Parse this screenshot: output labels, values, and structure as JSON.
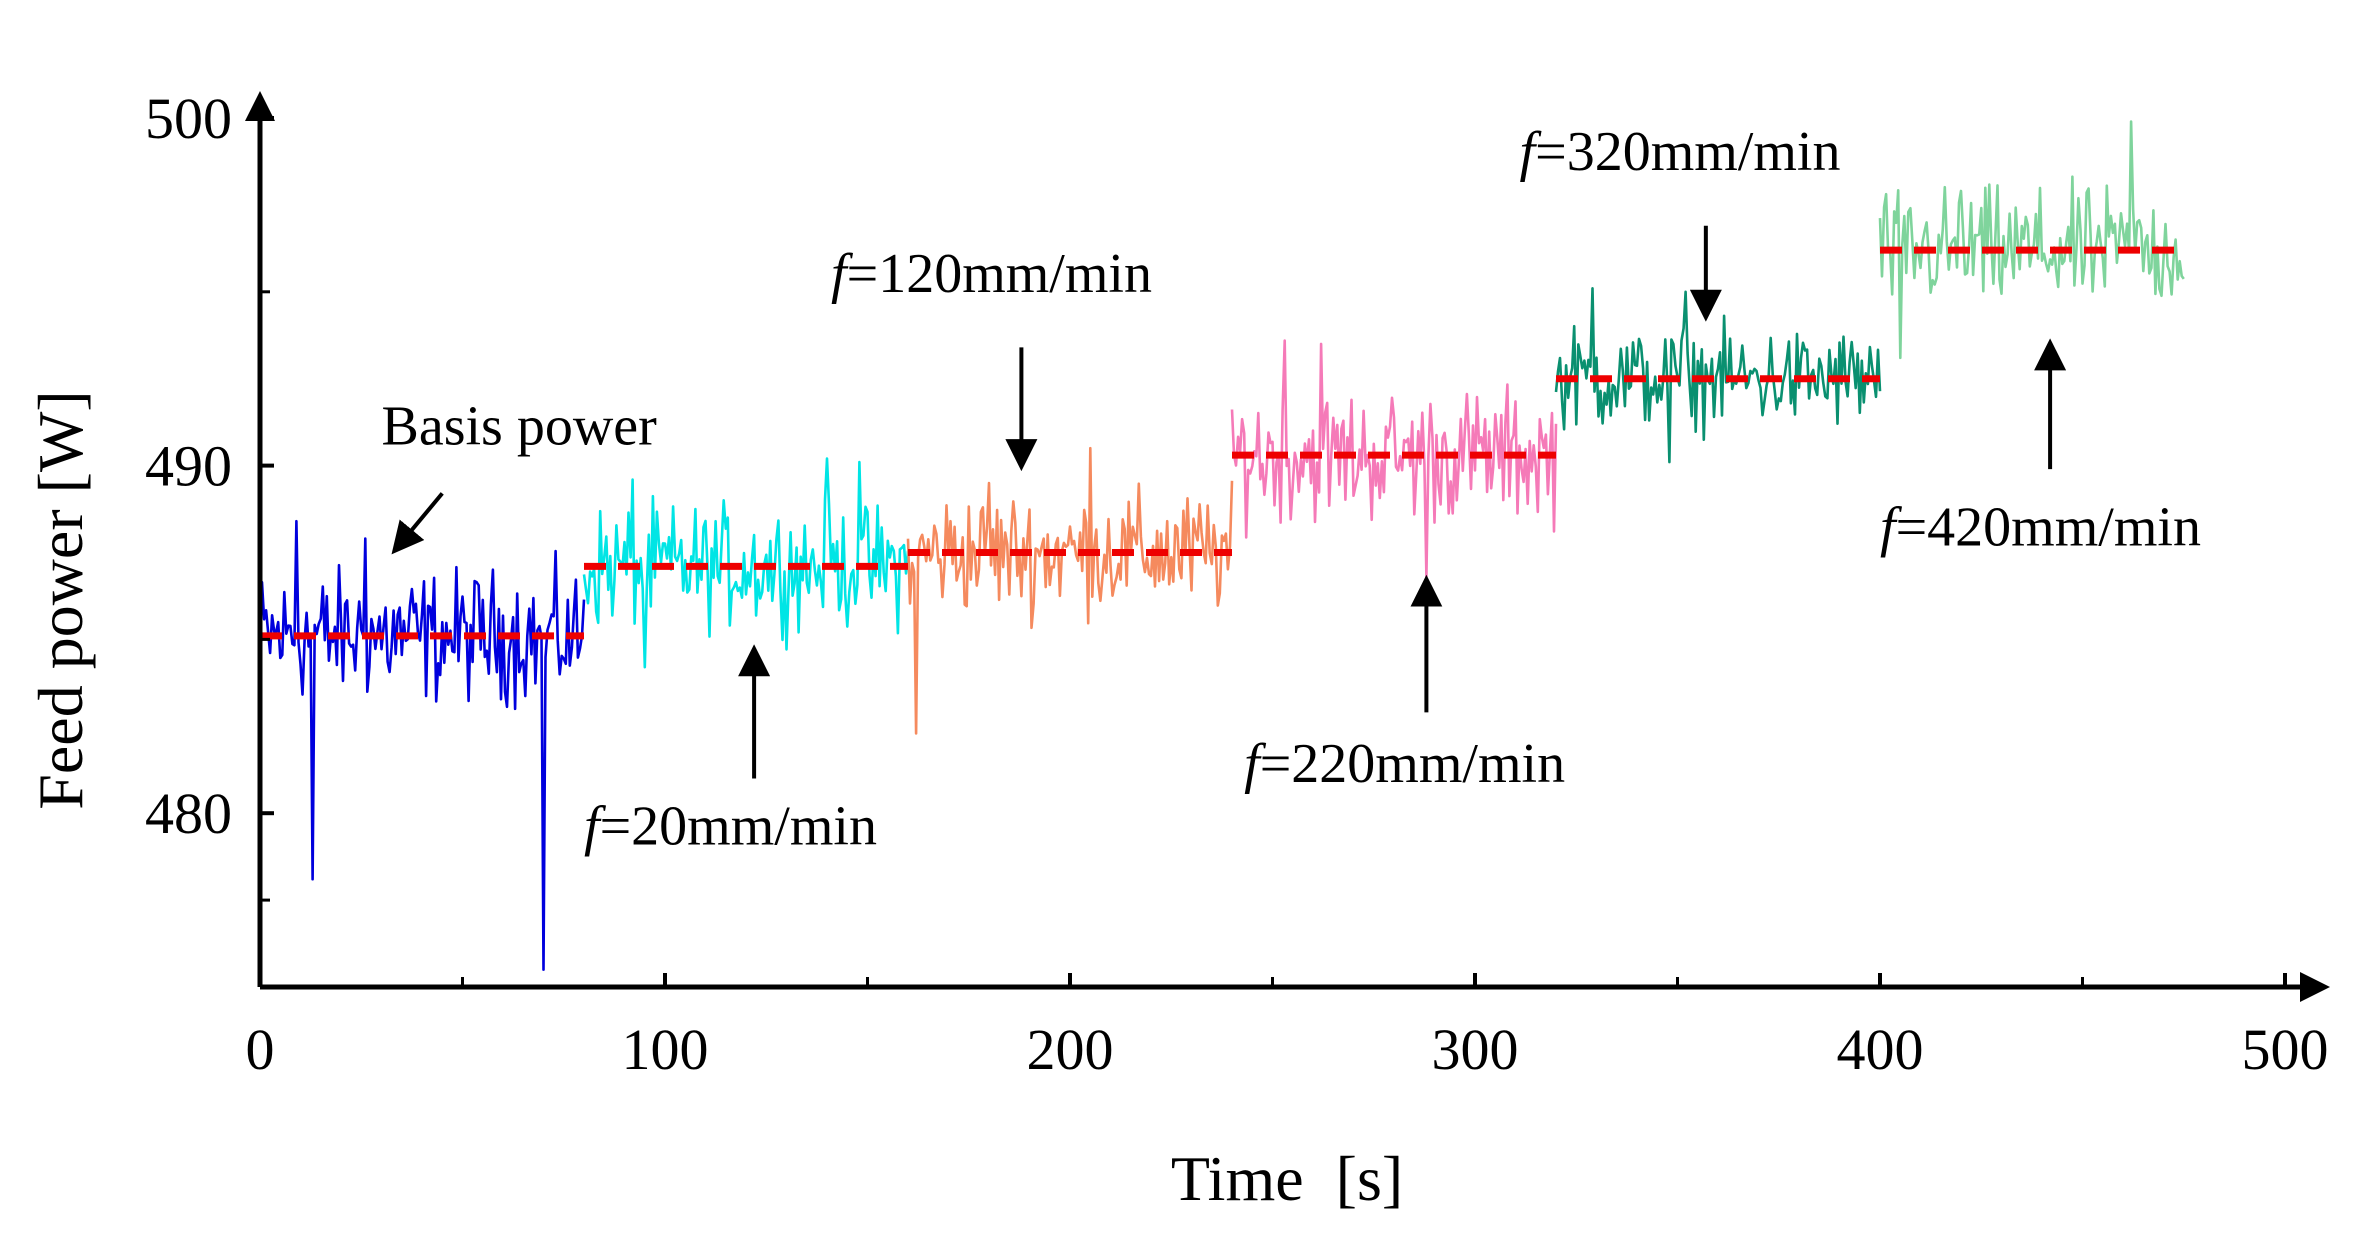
{
  "chart_data": {
    "type": "line",
    "title": "",
    "xlabel": "Time  [s]",
    "ylabel": "Feed power [W]",
    "xlim": [
      0,
      500
    ],
    "ylim": [
      475,
      500
    ],
    "xticks": [
      0,
      100,
      200,
      300,
      400,
      500
    ],
    "yticks": [
      480,
      490,
      500
    ],
    "grid": false,
    "series": [
      {
        "name": "Basis power",
        "color": "#0000dd",
        "x_range": [
          0,
          80
        ],
        "mean": 485.1,
        "noise": 1.3,
        "spikes": [
          {
            "x": 9,
            "y": 488.4
          },
          {
            "x": 13,
            "y": 478.1
          },
          {
            "x": 26,
            "y": 487.9
          },
          {
            "x": 70,
            "y": 475.5
          }
        ]
      },
      {
        "name": "f=20mm/min",
        "color": "#00e5e5",
        "x_range": [
          80,
          160
        ],
        "mean": 487.1,
        "noise": 1.2,
        "spikes": [
          {
            "x": 92,
            "y": 489.6
          },
          {
            "x": 140,
            "y": 490.2
          },
          {
            "x": 148,
            "y": 490.1
          },
          {
            "x": 95,
            "y": 484.2
          }
        ]
      },
      {
        "name": "f=120mm/min",
        "color": "#f58a5e",
        "x_range": [
          160,
          240
        ],
        "mean": 487.5,
        "noise": 1.2,
        "spikes": [
          {
            "x": 162,
            "y": 482.3
          },
          {
            "x": 180,
            "y": 489.5
          },
          {
            "x": 205,
            "y": 490.5
          }
        ]
      },
      {
        "name": "f=220mm/min",
        "color": "#f57ab8",
        "x_range": [
          240,
          320
        ],
        "mean": 490.3,
        "noise": 1.3,
        "spikes": [
          {
            "x": 253,
            "y": 493.6
          },
          {
            "x": 262,
            "y": 493.5
          },
          {
            "x": 288,
            "y": 486.8
          }
        ]
      },
      {
        "name": "f=320mm/min",
        "color": "#0a9070",
        "x_range": [
          320,
          400
        ],
        "mean": 492.5,
        "noise": 1.0,
        "spikes": [
          {
            "x": 329,
            "y": 495.1
          },
          {
            "x": 352,
            "y": 495.0
          },
          {
            "x": 348,
            "y": 490.1
          }
        ]
      },
      {
        "name": "f=420mm/min",
        "color": "#7fd49c",
        "x_range": [
          400,
          475
        ],
        "mean": 496.2,
        "noise": 1.2,
        "spikes": [
          {
            "x": 420,
            "y": 497.9
          },
          {
            "x": 462,
            "y": 499.9
          },
          {
            "x": 405,
            "y": 493.1
          }
        ]
      }
    ],
    "mean_lines": [
      {
        "x": [
          0,
          80
        ],
        "y": 485.1
      },
      {
        "x": [
          80,
          160
        ],
        "y": 487.1
      },
      {
        "x": [
          160,
          240
        ],
        "y": 487.5
      },
      {
        "x": [
          240,
          320
        ],
        "y": 490.3
      },
      {
        "x": [
          320,
          400
        ],
        "y": 492.5
      },
      {
        "x": [
          400,
          475
        ],
        "y": 496.2
      }
    ],
    "mean_line_color": "#ee0000",
    "annotations": [
      {
        "prefix": "",
        "suffix": "Basis power",
        "text_x": 30,
        "text_y": 490.6,
        "arrow_from": [
          45,
          489.2
        ],
        "arrow_to": [
          35,
          487.8
        ]
      },
      {
        "prefix": "f",
        "suffix": "=20mm/min",
        "text_x": 80,
        "text_y": 479.1,
        "arrow_from": [
          122,
          481.0
        ],
        "arrow_to": [
          122,
          484.4
        ]
      },
      {
        "prefix": "f",
        "suffix": "=120mm/min",
        "text_x": 141,
        "text_y": 495.0,
        "arrow_from": [
          188,
          493.4
        ],
        "arrow_to": [
          188,
          490.3
        ]
      },
      {
        "prefix": "f",
        "suffix": "=220mm/min",
        "text_x": 243,
        "text_y": 480.9,
        "arrow_from": [
          288,
          482.9
        ],
        "arrow_to": [
          288,
          486.4
        ]
      },
      {
        "prefix": "f",
        "suffix": "=320mm/min",
        "text_x": 311,
        "text_y": 498.5,
        "arrow_from": [
          357,
          496.9
        ],
        "arrow_to": [
          357,
          494.6
        ]
      },
      {
        "prefix": "f",
        "suffix": "=420mm/min",
        "text_x": 400,
        "text_y": 487.7,
        "arrow_from": [
          442,
          489.9
        ],
        "arrow_to": [
          442,
          493.2
        ]
      }
    ]
  }
}
